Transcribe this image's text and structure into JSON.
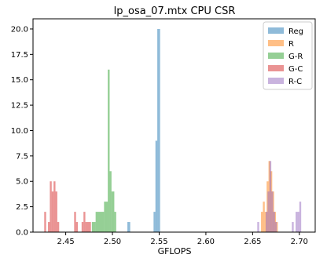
{
  "chart_data": {
    "type": "histogram",
    "title": "lp_osa_07.mtx CPU CSR",
    "xlabel": "GFLOPS",
    "ylabel": "",
    "xlim": [
      2.415,
      2.717
    ],
    "ylim": [
      0,
      21
    ],
    "xticks": [
      "2.45",
      "2.50",
      "2.55",
      "2.60",
      "2.65",
      "2.70"
    ],
    "yticks": [
      "0.0",
      "2.5",
      "5.0",
      "7.5",
      "10.0",
      "12.5",
      "15.0",
      "17.5",
      "20.0"
    ],
    "legend_position": "top-right",
    "grid": false,
    "bar_alpha": 0.5,
    "series": [
      {
        "name": "Reg",
        "color": "#1f77b4",
        "bins": [
          [
            2.516,
            2.519,
            1
          ],
          [
            2.544,
            2.546,
            2
          ],
          [
            2.546,
            2.548,
            9
          ],
          [
            2.548,
            2.551,
            20
          ]
        ]
      },
      {
        "name": "R",
        "color": "#ff7f0e",
        "bins": [
          [
            2.659,
            2.661,
            2
          ],
          [
            2.661,
            2.663,
            3
          ],
          [
            2.663,
            2.665,
            2
          ],
          [
            2.665,
            2.667,
            5
          ],
          [
            2.667,
            2.669,
            7
          ],
          [
            2.669,
            2.671,
            6
          ],
          [
            2.671,
            2.673,
            4
          ],
          [
            2.673,
            2.675,
            2
          ],
          [
            2.675,
            2.677,
            1
          ]
        ]
      },
      {
        "name": "G-R",
        "color": "#2ca02c",
        "bins": [
          [
            2.478,
            2.482,
            1
          ],
          [
            2.482,
            2.491,
            2
          ],
          [
            2.491,
            2.495,
            3
          ],
          [
            2.495,
            2.497,
            16
          ],
          [
            2.497,
            2.499,
            6
          ],
          [
            2.499,
            2.502,
            4
          ],
          [
            2.502,
            2.504,
            2
          ]
        ]
      },
      {
        "name": "G-C",
        "color": "#d62728",
        "bins": [
          [
            2.427,
            2.429,
            2
          ],
          [
            2.431,
            2.433,
            1
          ],
          [
            2.433,
            2.435,
            5
          ],
          [
            2.435,
            2.437,
            4
          ],
          [
            2.437,
            2.439,
            5
          ],
          [
            2.439,
            2.441,
            4
          ],
          [
            2.441,
            2.443,
            1
          ],
          [
            2.459,
            2.461,
            2
          ],
          [
            2.461,
            2.463,
            1
          ],
          [
            2.467,
            2.469,
            1
          ],
          [
            2.469,
            2.471,
            2
          ],
          [
            2.471,
            2.473,
            1
          ],
          [
            2.473,
            2.477,
            1
          ]
        ]
      },
      {
        "name": "R-C",
        "color": "#9467bd",
        "bins": [
          [
            2.655,
            2.657,
            1
          ],
          [
            2.664,
            2.666,
            2
          ],
          [
            2.666,
            2.668,
            4
          ],
          [
            2.668,
            2.67,
            7
          ],
          [
            2.67,
            2.672,
            4
          ],
          [
            2.672,
            2.674,
            2
          ],
          [
            2.674,
            2.676,
            1
          ],
          [
            2.692,
            2.694,
            1
          ],
          [
            2.696,
            2.698,
            2
          ],
          [
            2.698,
            2.7,
            2
          ],
          [
            2.7,
            2.702,
            3
          ]
        ]
      }
    ]
  }
}
